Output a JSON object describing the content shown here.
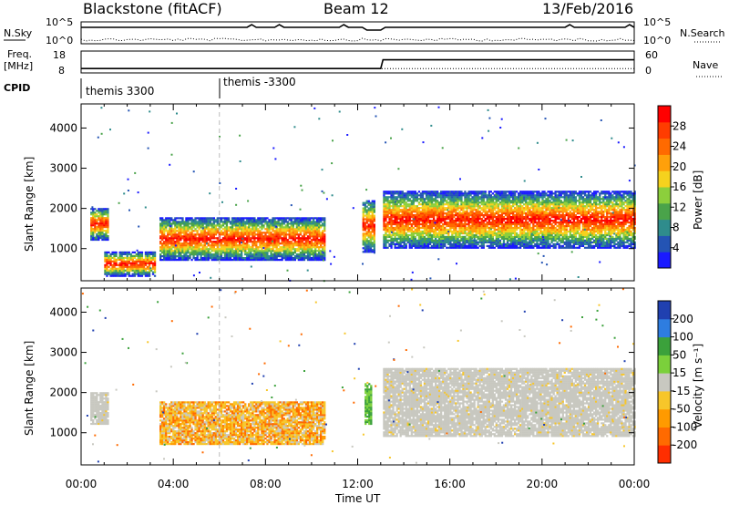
{
  "header": {
    "station": "Blackstone (fitACF)",
    "beam": "Beam 12",
    "date": "13/Feb/2016"
  },
  "sky_panel": {
    "left_label": "N.Sky",
    "right_label": "N.Search",
    "left_ticks": [
      "10^5",
      "10^0"
    ],
    "right_ticks": [
      "10^5",
      "10^0"
    ]
  },
  "freq_panel": {
    "left_label_line1": "Freq.",
    "left_label_line2": "[MHz]",
    "right_label": "Nave",
    "left_ticks": [
      "18",
      "8"
    ],
    "right_ticks": [
      "60",
      "0"
    ]
  },
  "cpid_panel": {
    "label": "CPID",
    "entries": [
      "themis 3300",
      "themis -3300"
    ]
  },
  "axes": {
    "x_label": "Time UT",
    "x_ticks": [
      "00:00",
      "04:00",
      "08:00",
      "12:00",
      "16:00",
      "20:00",
      "00:00"
    ],
    "y_label": "Slant Range [km]",
    "y_ticks": [
      "1000",
      "2000",
      "3000",
      "4000"
    ]
  },
  "power_colorbar": {
    "label": "Power [dB]",
    "ticks": [
      "4",
      "8",
      "12",
      "16",
      "20",
      "24",
      "28"
    ],
    "colors": [
      "#1a1aff",
      "#2454b4",
      "#2f8c8c",
      "#4aa34a",
      "#8ccf3c",
      "#f5d21e",
      "#ffa00a",
      "#ff6a00",
      "#ff3c00",
      "#ff0000"
    ]
  },
  "velocity_colorbar": {
    "label": "Velocity [m s⁻¹]",
    "ticks": [
      "200",
      "100",
      "50",
      "15",
      "-15",
      "-50",
      "-100",
      "-200"
    ],
    "colors": [
      "#2040b0",
      "#2e7de0",
      "#3ba13b",
      "#7bd03b",
      "#c8c8c0",
      "#f7c62a",
      "#ff9a00",
      "#ff6a00",
      "#ff2e00"
    ]
  },
  "chart_data": {
    "type": "heatmap",
    "title": "Blackstone (fitACF) Beam 12 13/Feb/2016",
    "xlabel": "Time UT",
    "ylabel": "Slant Range [km]",
    "xlim": [
      "00:00",
      "24:00"
    ],
    "ylim": [
      200,
      4600
    ],
    "panels": [
      {
        "name": "Power",
        "unit": "dB",
        "colorbar_ticks": [
          4,
          8,
          12,
          16,
          20,
          24,
          28
        ],
        "regions": [
          {
            "t0": 0.4,
            "t1": 1.2,
            "r_bottom": 1200,
            "r_top": 2000
          },
          {
            "t0": 1.0,
            "t1": 3.2,
            "r_bottom": 300,
            "r_top": 900
          },
          {
            "t0": 3.4,
            "t1": 10.6,
            "r_bottom": 700,
            "r_top": 1750
          },
          {
            "t0": 12.2,
            "t1": 12.7,
            "r_bottom": 900,
            "r_top": 2200
          },
          {
            "t0": 13.1,
            "t1": 24.0,
            "r_bottom": 1000,
            "r_top": 2400
          }
        ]
      },
      {
        "name": "Velocity",
        "unit": "m s-1",
        "colorbar_ticks": [
          200,
          100,
          50,
          15,
          -15,
          -50,
          -100,
          -200
        ],
        "regions": [
          {
            "t0": 0.4,
            "t1": 1.2,
            "r_bottom": 1200,
            "r_top": 2000,
            "velocity": 0
          },
          {
            "t0": 3.4,
            "t1": 10.6,
            "r_bottom": 700,
            "r_top": 1750,
            "velocity": -60
          },
          {
            "t0": 12.3,
            "t1": 12.6,
            "r_bottom": 1200,
            "r_top": 2200,
            "velocity": 60
          },
          {
            "t0": 13.1,
            "t1": 24.0,
            "r_bottom": 900,
            "r_top": 2600,
            "velocity": 0
          }
        ]
      }
    ],
    "cpid_change_time": "06:00",
    "frequency_MHz": [
      {
        "t": 0,
        "value": 10
      },
      {
        "t": 13,
        "value": 10
      },
      {
        "t": 13.1,
        "value": 14
      },
      {
        "t": 24,
        "value": 14
      }
    ],
    "nave": [
      {
        "t": 0,
        "value": 12
      },
      {
        "t": 24,
        "value": 12
      }
    ]
  }
}
